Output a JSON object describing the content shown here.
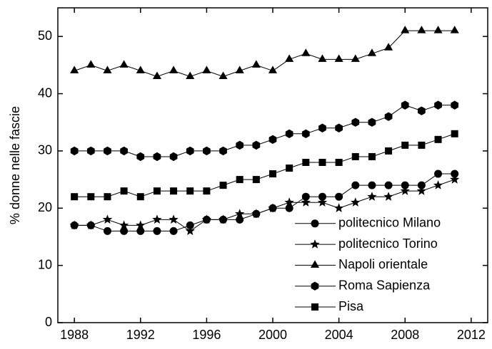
{
  "chart_data": {
    "type": "line",
    "y_label": "% donne nelle fascie",
    "x": [
      1988,
      1989,
      1990,
      1991,
      1992,
      1993,
      1994,
      1995,
      1996,
      1997,
      1998,
      1999,
      2000,
      2001,
      2002,
      2003,
      2004,
      2005,
      2006,
      2007,
      2008,
      2009,
      2010,
      2011
    ],
    "series": [
      {
        "name": "politecnico Milano",
        "color": "#000000",
        "marker": "circle",
        "values": [
          17,
          17,
          16,
          16,
          16,
          16,
          16,
          17,
          18,
          18,
          18,
          19,
          20,
          20,
          22,
          22,
          22,
          24,
          24,
          24,
          24,
          24,
          26,
          26
        ]
      },
      {
        "name": "politecnico Torino",
        "color": "#000000",
        "marker": "star",
        "values": [
          17,
          17,
          18,
          17,
          17,
          18,
          18,
          16,
          18,
          18,
          19,
          19,
          20,
          21,
          21,
          21,
          20,
          21,
          22,
          22,
          23,
          23,
          24,
          25
        ]
      },
      {
        "name": "Napoli orientale",
        "color": "#000000",
        "marker": "triangle",
        "values": [
          44,
          45,
          44,
          45,
          44,
          43,
          44,
          43,
          44,
          43,
          44,
          45,
          44,
          46,
          47,
          46,
          46,
          46,
          47,
          48,
          51,
          51,
          51,
          51
        ]
      },
      {
        "name": "Roma Sapienza",
        "color": "#000000",
        "marker": "hexagon",
        "values": [
          30,
          30,
          30,
          30,
          29,
          29,
          29,
          30,
          30,
          30,
          31,
          31,
          32,
          33,
          33,
          34,
          34,
          35,
          35,
          36,
          38,
          37,
          38,
          38
        ]
      },
      {
        "name": "Pisa",
        "color": "#000000",
        "marker": "square",
        "values": [
          22,
          22,
          22,
          23,
          22,
          23,
          23,
          23,
          23,
          24,
          25,
          25,
          26,
          27,
          28,
          28,
          28,
          29,
          29,
          30,
          31,
          31,
          32,
          33
        ]
      }
    ],
    "xlim": [
      1987,
      2013
    ],
    "xticks": [
      1988,
      1992,
      1996,
      2000,
      2004,
      2008,
      2012
    ],
    "ylim": [
      0,
      55
    ],
    "yticks": [
      0,
      10,
      20,
      30,
      40,
      50
    ],
    "legend": "lower right"
  }
}
